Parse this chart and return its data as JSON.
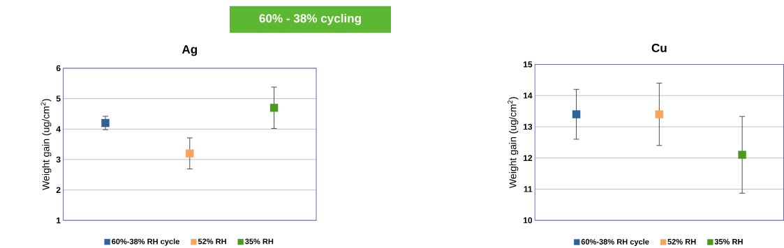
{
  "chart_data": [
    {
      "type": "scatter",
      "title": "Ag",
      "ylabel": "Weight gain (ug/cm$^{2}$)",
      "annotations": [
        "60% - 38% cycling"
      ],
      "categories": [
        null,
        null,
        null
      ],
      "ylim": [
        1,
        6
      ],
      "yticks": [
        1,
        2,
        3,
        4,
        5,
        6
      ],
      "grid": "y",
      "legend": "bottom",
      "marker": "square",
      "series": [
        {
          "name": "60%-38% RH cycle",
          "color": "#2e6399",
          "values": [
            4.2,
            null,
            null
          ],
          "errors": [
            0.22,
            null,
            null
          ]
        },
        {
          "name": "52% RH",
          "color": "#f5a65b",
          "values": [
            null,
            3.2,
            null
          ],
          "errors": [
            null,
            0.51,
            null
          ]
        },
        {
          "name": "35% RH",
          "color": "#4a9a1e",
          "values": [
            null,
            null,
            4.7
          ],
          "errors": [
            null,
            null,
            0.68
          ]
        }
      ]
    },
    {
      "type": "scatter",
      "title": "Cu",
      "ylabel": "Weight gain (ug/cm$^{2}$)",
      "categories": [
        null,
        null,
        null
      ],
      "ylim": [
        10,
        15
      ],
      "yticks": [
        10,
        11,
        12,
        13,
        14,
        15
      ],
      "grid": "y",
      "legend": "bottom",
      "marker": "square",
      "series": [
        {
          "name": "60%-38% RH cycle",
          "color": "#2e6399",
          "values": [
            13.4,
            null,
            null
          ],
          "errors": [
            0.8,
            null,
            null
          ]
        },
        {
          "name": "52% RH",
          "color": "#f5a65b",
          "values": [
            null,
            13.4,
            null
          ],
          "errors": [
            null,
            1.0,
            null
          ]
        },
        {
          "name": "35% RH",
          "color": "#4a9a1e",
          "values": [
            null,
            null,
            12.1
          ],
          "errors": [
            null,
            null,
            1.23
          ]
        }
      ]
    }
  ]
}
